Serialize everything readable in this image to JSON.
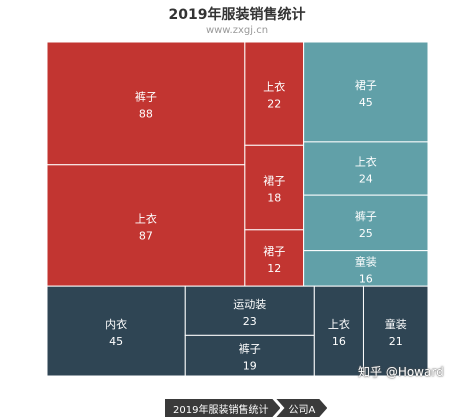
{
  "chart_data": {
    "type": "treemap",
    "title": "2019年服装销售统计",
    "subtitle": "www.zxgj.cn",
    "groups": [
      {
        "color": "#c23531",
        "children": [
          {
            "name": "裤子",
            "value": 88
          },
          {
            "name": "上衣",
            "value": 87
          },
          {
            "name": "上衣",
            "value": 22
          },
          {
            "name": "裙子",
            "value": 18
          },
          {
            "name": "裙子",
            "value": 12
          }
        ]
      },
      {
        "color": "#61a0a8",
        "children": [
          {
            "name": "裙子",
            "value": 45
          },
          {
            "name": "上衣",
            "value": 24
          },
          {
            "name": "裤子",
            "value": 25
          },
          {
            "name": "童装",
            "value": 16
          }
        ]
      },
      {
        "color": "#2f4554",
        "children": [
          {
            "name": "内衣",
            "value": 45
          },
          {
            "name": "运动装",
            "value": 23
          },
          {
            "name": "裤子",
            "value": 19
          },
          {
            "name": "上衣",
            "value": 16
          },
          {
            "name": "童装",
            "value": 21
          }
        ]
      }
    ],
    "breadcrumb": [
      "2019年服装销售统计",
      "公司A"
    ]
  },
  "watermark": "知乎 @Howard"
}
